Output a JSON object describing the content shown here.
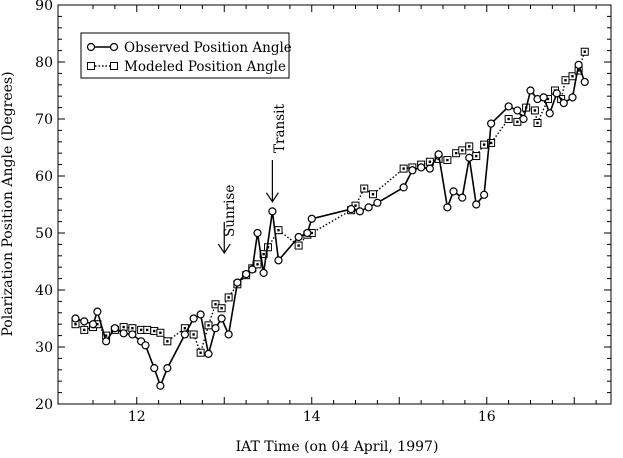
{
  "chart_data": {
    "type": "line",
    "xlabel": "IAT Time (on 04 April, 1997)",
    "ylabel": "Polarization Position Angle (Degrees)",
    "xlim": [
      11.1,
      17.42
    ],
    "ylim": [
      20,
      90
    ],
    "xticks": [
      12,
      14,
      16
    ],
    "yticks": [
      20,
      30,
      40,
      50,
      60,
      70,
      80,
      90
    ],
    "grid": false,
    "legend": "top-left",
    "annotations": [
      {
        "text": "Sunrise",
        "x": 13.0,
        "y": 46.5,
        "arrow": "down"
      },
      {
        "text": "Transit",
        "x": 13.55,
        "y": 55.5,
        "arrow": "down"
      }
    ],
    "series": [
      {
        "name": "Observed Position Angle",
        "marker": "circle",
        "linestyle": "solid",
        "points": [
          [
            11.3,
            35.0
          ],
          [
            11.4,
            34.5
          ],
          [
            11.5,
            34.0
          ],
          [
            11.55,
            36.2
          ],
          [
            11.65,
            31.0
          ],
          [
            11.75,
            33.3
          ],
          [
            11.85,
            32.4
          ],
          [
            11.95,
            32.2
          ],
          [
            12.05,
            31.0
          ],
          [
            12.1,
            30.3
          ],
          [
            12.2,
            26.3
          ],
          [
            12.27,
            23.2
          ],
          [
            12.35,
            26.3
          ],
          [
            12.55,
            32.2
          ],
          [
            12.65,
            35.0
          ],
          [
            12.73,
            35.7
          ],
          [
            12.82,
            28.8
          ],
          [
            12.9,
            33.3
          ],
          [
            12.97,
            35.0
          ],
          [
            13.05,
            32.2
          ],
          [
            13.15,
            41.3
          ],
          [
            13.25,
            42.8
          ],
          [
            13.32,
            43.6
          ],
          [
            13.38,
            50.0
          ],
          [
            13.45,
            43.0
          ],
          [
            13.55,
            53.8
          ],
          [
            13.62,
            45.2
          ],
          [
            13.85,
            49.3
          ],
          [
            13.95,
            50.0
          ],
          [
            14.0,
            52.5
          ],
          [
            14.45,
            54.2
          ],
          [
            14.55,
            53.8
          ],
          [
            14.65,
            54.5
          ],
          [
            14.75,
            55.3
          ],
          [
            15.05,
            58.0
          ],
          [
            15.15,
            61.0
          ],
          [
            15.25,
            61.5
          ],
          [
            15.35,
            61.3
          ],
          [
            15.45,
            63.8
          ],
          [
            15.55,
            54.5
          ],
          [
            15.62,
            57.3
          ],
          [
            15.72,
            56.2
          ],
          [
            15.8,
            63.2
          ],
          [
            15.88,
            55.0
          ],
          [
            15.97,
            56.7
          ],
          [
            16.05,
            69.2
          ],
          [
            16.25,
            72.2
          ],
          [
            16.35,
            71.5
          ],
          [
            16.42,
            70.0
          ],
          [
            16.5,
            75.0
          ],
          [
            16.58,
            73.5
          ],
          [
            16.65,
            73.8
          ],
          [
            16.72,
            71.0
          ],
          [
            16.8,
            74.5
          ],
          [
            16.88,
            72.8
          ],
          [
            16.98,
            73.8
          ],
          [
            17.05,
            79.5
          ],
          [
            17.12,
            76.5
          ]
        ]
      },
      {
        "name": "Modeled Position Angle",
        "marker": "square",
        "linestyle": "dotted",
        "points": [
          [
            11.3,
            34.0
          ],
          [
            11.4,
            33.0
          ],
          [
            11.5,
            33.5
          ],
          [
            11.55,
            34.0
          ],
          [
            11.65,
            32.0
          ],
          [
            11.75,
            33.0
          ],
          [
            11.85,
            33.5
          ],
          [
            11.95,
            33.3
          ],
          [
            12.05,
            33.0
          ],
          [
            12.12,
            33.0
          ],
          [
            12.2,
            32.8
          ],
          [
            12.27,
            32.5
          ],
          [
            12.35,
            31.0
          ],
          [
            12.55,
            33.3
          ],
          [
            12.65,
            32.2
          ],
          [
            12.73,
            29.0
          ],
          [
            12.82,
            33.8
          ],
          [
            12.9,
            37.5
          ],
          [
            12.97,
            36.8
          ],
          [
            13.05,
            38.7
          ],
          [
            13.15,
            41.0
          ],
          [
            13.25,
            42.6
          ],
          [
            13.32,
            43.8
          ],
          [
            13.38,
            44.5
          ],
          [
            13.45,
            46.3
          ],
          [
            13.5,
            47.5
          ],
          [
            13.62,
            50.5
          ],
          [
            13.85,
            47.8
          ],
          [
            13.95,
            49.7
          ],
          [
            14.0,
            50.0
          ],
          [
            14.45,
            54.0
          ],
          [
            14.5,
            54.8
          ],
          [
            14.6,
            57.8
          ],
          [
            14.7,
            56.8
          ],
          [
            15.05,
            61.3
          ],
          [
            15.15,
            61.5
          ],
          [
            15.25,
            62.0
          ],
          [
            15.35,
            62.5
          ],
          [
            15.45,
            63.0
          ],
          [
            15.55,
            62.8
          ],
          [
            15.65,
            64.0
          ],
          [
            15.72,
            64.5
          ],
          [
            15.8,
            65.2
          ],
          [
            15.88,
            63.5
          ],
          [
            15.97,
            65.5
          ],
          [
            16.05,
            65.8
          ],
          [
            16.25,
            70.0
          ],
          [
            16.35,
            69.5
          ],
          [
            16.45,
            72.0
          ],
          [
            16.55,
            71.5
          ],
          [
            16.58,
            69.3
          ],
          [
            16.7,
            73.5
          ],
          [
            16.78,
            75.0
          ],
          [
            16.85,
            73.5
          ],
          [
            16.9,
            76.8
          ],
          [
            16.98,
            77.5
          ],
          [
            17.05,
            78.5
          ],
          [
            17.12,
            81.8
          ]
        ]
      }
    ]
  }
}
